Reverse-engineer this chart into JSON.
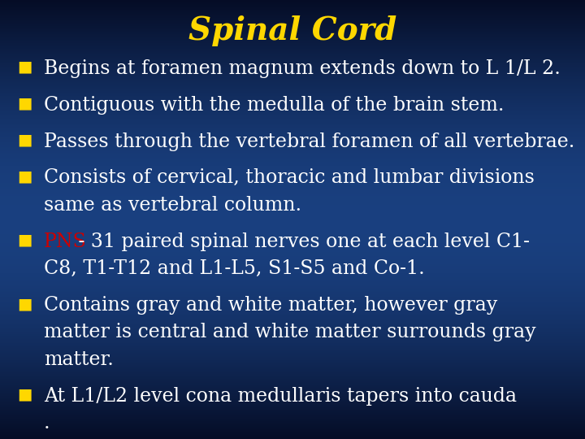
{
  "title": "Spinal Cord",
  "title_color": "#FFD700",
  "title_fontsize": 28,
  "bullet_color": "#FFD700",
  "text_color": "#FFFFFF",
  "pns_color": "#CC0000",
  "bullet_char": "■",
  "bullet_fontsize": 17,
  "bg_colors": [
    "#020d3a",
    "#0a2a80",
    "#0a2a80",
    "#020d3a"
  ],
  "bullets": [
    {
      "parts": [
        {
          "text": "Begins at foramen magnum extends down to L 1/L 2.",
          "color": "#FFFFFF"
        }
      ]
    },
    {
      "parts": [
        {
          "text": "Contiguous with the medulla of the brain stem.",
          "color": "#FFFFFF"
        }
      ]
    },
    {
      "parts": [
        {
          "text": "Passes through the vertebral foramen of all vertebrae.",
          "color": "#FFFFFF"
        }
      ]
    },
    {
      "parts": [
        {
          "text": "Consists of cervical, thoracic and lumbar divisions\nsame as vertebral column.",
          "color": "#FFFFFF"
        }
      ]
    },
    {
      "parts": [
        {
          "text": "PNS",
          "color": "#CC0000"
        },
        {
          "text": " - 31 paired spinal nerves one at each level C1-\nC8, T1-T12 and L1-L5, S1-S5 and Co-1.",
          "color": "#FFFFFF"
        }
      ]
    },
    {
      "parts": [
        {
          "text": "Contains gray and white matter, however gray\nmatter is central and white matter surrounds gray\nmatter.",
          "color": "#FFFFFF"
        }
      ]
    },
    {
      "parts": [
        {
          "text": "At L1/L2 level cona medullaris tapers into cauda\n.",
          "color": "#FFFFFF"
        }
      ]
    }
  ]
}
